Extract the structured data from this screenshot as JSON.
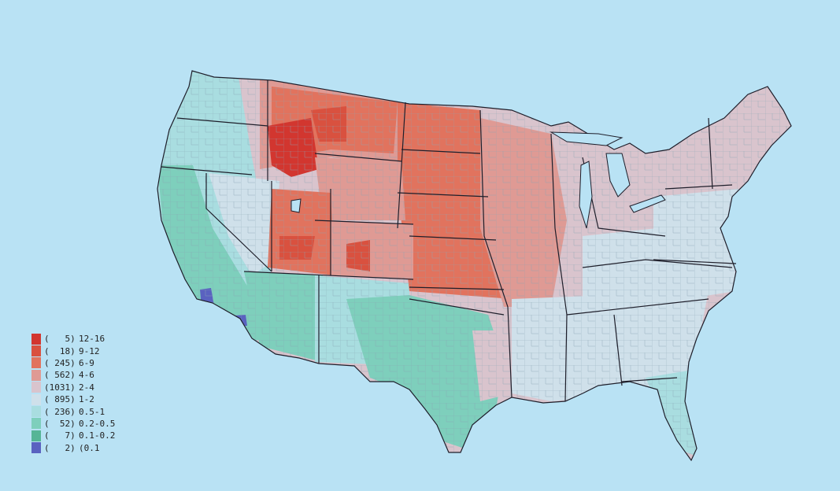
{
  "background_color": "#b9e2f4",
  "legend": [
    {
      "count": "(   5)",
      "range": "12-16",
      "color": "#d2362f"
    },
    {
      "count": "(  18)",
      "range": "9-12",
      "color": "#d9513f"
    },
    {
      "count": "( 245)",
      "range": "6-9",
      "color": "#e1735e"
    },
    {
      "count": "( 562)",
      "range": "4-6",
      "color": "#df9a94"
    },
    {
      "count": "(1031)",
      "range": "2-4",
      "color": "#d9c4cd"
    },
    {
      "count": "( 895)",
      "range": "1-2",
      "color": "#cfe0ea"
    },
    {
      "count": "( 236)",
      "range": "0.5-1",
      "color": "#a9dde0"
    },
    {
      "count": "(  52)",
      "range": "0.2-0.5",
      "color": "#7ecfbc"
    },
    {
      "count": "(   7)",
      "range": "0.1-0.2",
      "color": "#56b596"
    },
    {
      "count": "(   2)",
      "range": "(0.1",
      "color": "#5a62c0"
    }
  ],
  "map": {
    "border_color": "#1e1e2a",
    "county_line_color": "#8aa6b4"
  }
}
